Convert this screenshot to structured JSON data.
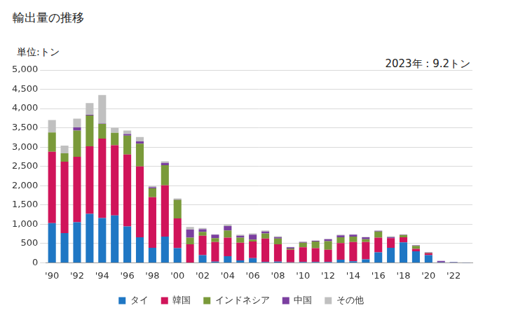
{
  "chart_data": {
    "type": "bar",
    "title": "輸出量の推移",
    "y_label": "単位:トン",
    "annotation": "2023年 : 9.2トン",
    "stacked": true,
    "grid": true,
    "legend": "bottom",
    "categories": [
      "'90",
      null,
      "'92",
      null,
      "'94",
      null,
      "'96",
      null,
      "'98",
      null,
      "'00",
      null,
      "'02",
      null,
      "'04",
      null,
      "'06",
      null,
      "'08",
      null,
      "'10",
      null,
      "'12",
      null,
      "'14",
      null,
      "'16",
      null,
      "'18",
      null,
      "'20",
      null,
      "'22",
      null
    ],
    "ylim": [
      0,
      5000
    ],
    "yticks": [
      0,
      500,
      {
        "value": 1000,
        "label": "1,000"
      },
      {
        "value": 1500,
        "label": "1,500"
      },
      {
        "value": 2000,
        "label": "2,000"
      },
      {
        "value": 2500,
        "label": "2,500"
      },
      {
        "value": 3000,
        "label": "3,000"
      },
      {
        "value": 3500,
        "label": "3,500"
      },
      {
        "value": 4000,
        "label": "4,000"
      },
      {
        "value": 4500,
        "label": "4,500"
      },
      {
        "value": 5000,
        "label": "5,000"
      }
    ],
    "series": [
      {
        "name": "タイ",
        "color": "#1f77c4",
        "values": [
          1030,
          770,
          1050,
          1270,
          1160,
          1230,
          940,
          660,
          390,
          680,
          380,
          0,
          200,
          30,
          170,
          60,
          120,
          20,
          30,
          10,
          20,
          20,
          20,
          80,
          40,
          90,
          270,
          390,
          530,
          300,
          200,
          10,
          10,
          2
        ]
      },
      {
        "name": "韓国",
        "color": "#d0145a",
        "values": [
          1850,
          1850,
          1700,
          1750,
          2060,
          1820,
          1870,
          1840,
          1310,
          1330,
          770,
          480,
          500,
          510,
          480,
          460,
          430,
          610,
          450,
          330,
          380,
          360,
          320,
          430,
          500,
          450,
          380,
          250,
          130,
          60,
          50,
          0,
          0,
          0
        ]
      },
      {
        "name": "インドネシア",
        "color": "#7a9a3a",
        "values": [
          500,
          220,
          680,
          800,
          380,
          320,
          490,
          590,
          230,
          520,
          480,
          170,
          100,
          100,
          190,
          130,
          50,
          130,
          150,
          30,
          120,
          170,
          220,
          150,
          140,
          70,
          160,
          0,
          60,
          80,
          10,
          0,
          0,
          0
        ]
      },
      {
        "name": "中国",
        "color": "#7b3fa0",
        "values": [
          0,
          0,
          80,
          20,
          10,
          0,
          40,
          60,
          30,
          60,
          10,
          210,
          70,
          90,
          110,
          50,
          130,
          50,
          30,
          30,
          20,
          20,
          50,
          50,
          50,
          50,
          20,
          20,
          10,
          10,
          10,
          40,
          10,
          7.2
        ]
      },
      {
        "name": "その他",
        "color": "#c0c0c0",
        "values": [
          320,
          200,
          230,
          300,
          740,
          130,
          90,
          110,
          30,
          40,
          30,
          70,
          30,
          10,
          40,
          30,
          30,
          30,
          30,
          10,
          10,
          10,
          10,
          20,
          10,
          10,
          10,
          30,
          10,
          10,
          0,
          0,
          0,
          0
        ]
      }
    ]
  }
}
